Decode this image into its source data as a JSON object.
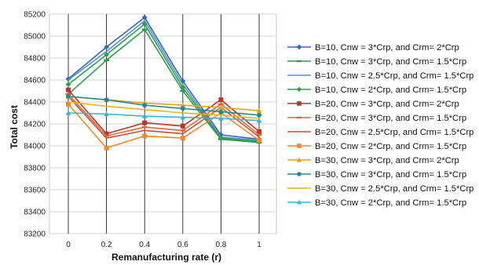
{
  "chart_data": {
    "type": "line",
    "title": "",
    "xlabel": "Remanufacturing rate (r)",
    "ylabel": "Total cost",
    "x": [
      0,
      0.2,
      0.4,
      0.6,
      0.8,
      1
    ],
    "x_tick_labels": [
      "0",
      "0.2",
      "0.4",
      "0.6",
      "0.8",
      "1"
    ],
    "ylim": [
      83200,
      85200
    ],
    "y_ticks": [
      83200,
      83400,
      83600,
      83800,
      84000,
      84200,
      84400,
      84600,
      84800,
      85000,
      85200
    ],
    "grid": true,
    "legend_position": "right",
    "series": [
      {
        "name": "B=10, Cnw = 3*Crp, and Crm= 2*Crp",
        "color": "#3a65b4",
        "marker": "diamond",
        "values": [
          84610,
          84900,
          85170,
          84590,
          84100,
          84060
        ]
      },
      {
        "name": "B=10, Cnw = 3*Crp, and Crm= 1.5*Crp",
        "color": "#2f9a53",
        "marker": "dash",
        "values": [
          84470,
          84780,
          85060,
          84500,
          84060,
          84030
        ]
      },
      {
        "name": "B=10, Cnw = 2.5*Crp, and Crm= 1.5*Crp",
        "color": "#5b8ee0",
        "marker": "none",
        "values": [
          84600,
          84860,
          85140,
          84560,
          84080,
          84050
        ]
      },
      {
        "name": "B=10, Cnw = 2*Crp, and Crm= 1.5*Crp",
        "color": "#29a24a",
        "marker": "diamond",
        "values": [
          84560,
          84830,
          85110,
          84530,
          84070,
          84040
        ]
      },
      {
        "name": "B=20, Cnw = 3*Crp, and Crm= 2*Crp",
        "color": "#b5372f",
        "marker": "square",
        "values": [
          84510,
          84110,
          84210,
          84180,
          84420,
          84130
        ]
      },
      {
        "name": "B=20, Cnw = 3*Crp, and Crm= 1.5*Crp",
        "color": "#e46a2f",
        "marker": "dash",
        "values": [
          84470,
          84090,
          84170,
          84140,
          84380,
          84100
        ]
      },
      {
        "name": "B=20, Cnw = 2.5*Crp, and Crm= 1.5*Crp",
        "color": "#c8503a",
        "marker": "none",
        "values": [
          84450,
          84070,
          84140,
          84110,
          84350,
          84080
        ]
      },
      {
        "name": "B=20, Cnw = 2*Crp, and Crm= 1.5*Crp",
        "color": "#f08a24",
        "marker": "square",
        "values": [
          84380,
          83980,
          84090,
          84070,
          84300,
          84050
        ]
      },
      {
        "name": "B=30, Cnw = 3*Crp, and Crm= 2*Crp",
        "color": "#e0a21e",
        "marker": "triangle",
        "values": [
          84450,
          84420,
          84390,
          84370,
          84350,
          84320
        ]
      },
      {
        "name": "B=30, Cnw = 3*Crp, and Crm= 1.5*Crp",
        "color": "#2a8a8a",
        "marker": "circle",
        "values": [
          84450,
          84420,
          84370,
          84340,
          84310,
          84280
        ]
      },
      {
        "name": "B=30, Cnw = 2.5*Crp, and Crm= 1.5*Crp",
        "color": "#e8b320",
        "marker": "none",
        "values": [
          84400,
          84360,
          84330,
          84300,
          84280,
          84250
        ]
      },
      {
        "name": "B=30, Cnw = 2*Crp, and Crm= 1.5*Crp",
        "color": "#3cb4d2",
        "marker": "triangle",
        "values": [
          84300,
          84290,
          84270,
          84260,
          84250,
          84230
        ]
      }
    ]
  }
}
